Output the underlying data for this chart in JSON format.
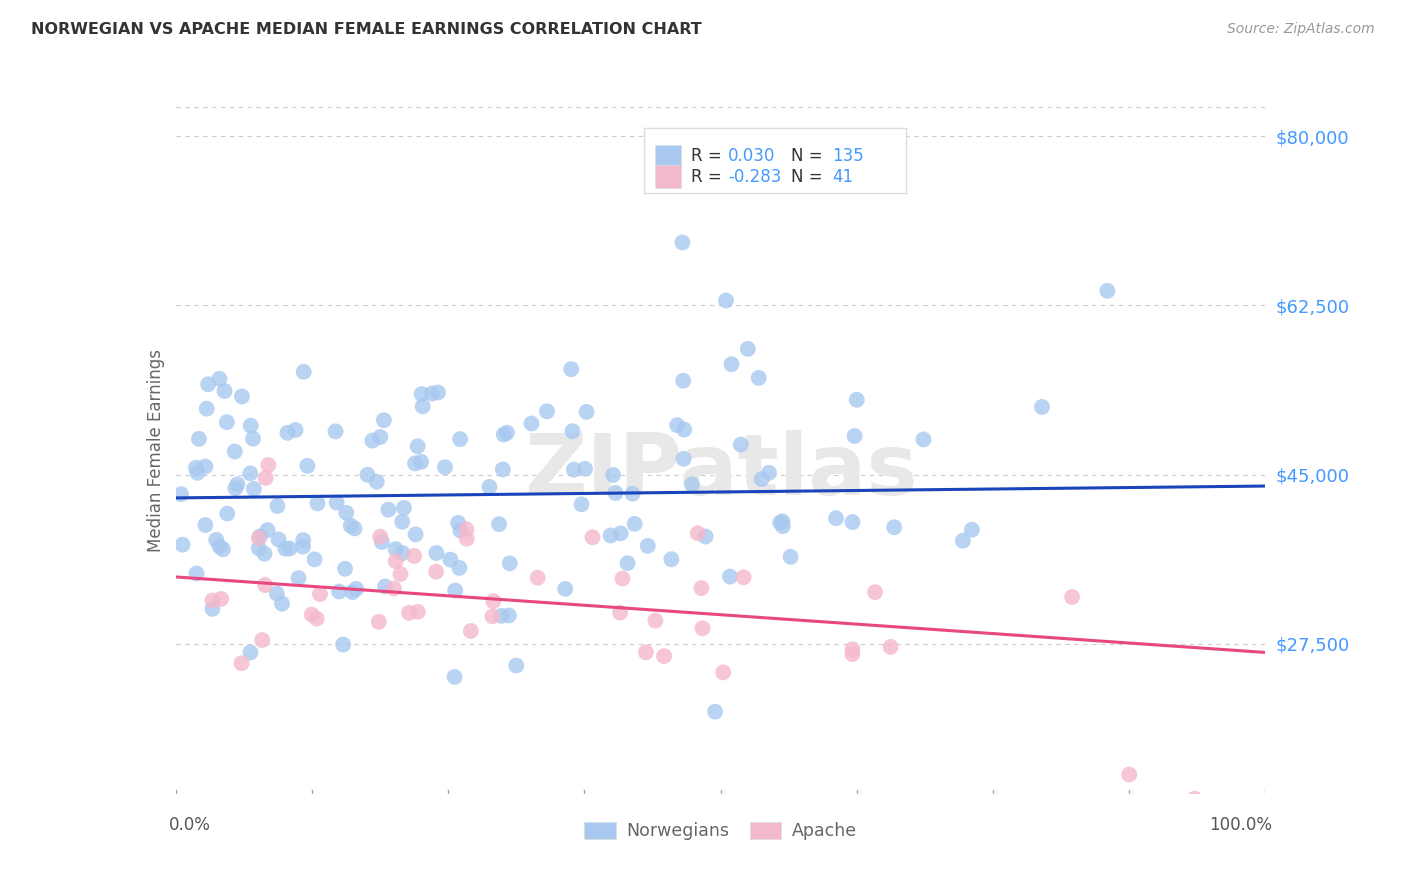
{
  "title": "NORWEGIAN VS APACHE MEDIAN FEMALE EARNINGS CORRELATION CHART",
  "source": "Source: ZipAtlas.com",
  "ylabel": "Median Female Earnings",
  "ytick_labels": [
    "$27,500",
    "$45,000",
    "$62,500",
    "$80,000"
  ],
  "ytick_values": [
    27500,
    45000,
    62500,
    80000
  ],
  "ymin": 12000,
  "ymax": 83000,
  "xmin": 0.0,
  "xmax": 1.0,
  "norwegian_R": 0.03,
  "norwegian_N": 135,
  "apache_R": -0.283,
  "apache_N": 41,
  "norwegian_color": "#a8c8f0",
  "apache_color": "#f4b8cc",
  "norwegian_line_color": "#1a44bb",
  "apache_line_color": "#e84880",
  "title_color": "#333333",
  "source_color": "#999999",
  "ytick_color": "#4499ff",
  "grid_color": "#cccccc",
  "background_color": "#ffffff",
  "watermark_color": "#e8e8e8",
  "legend_border_color": "#dddddd",
  "legend_text_color": "#333333",
  "bottom_legend_text_color": "#666666",
  "xaxis_tick_color": "#aaaaaa"
}
